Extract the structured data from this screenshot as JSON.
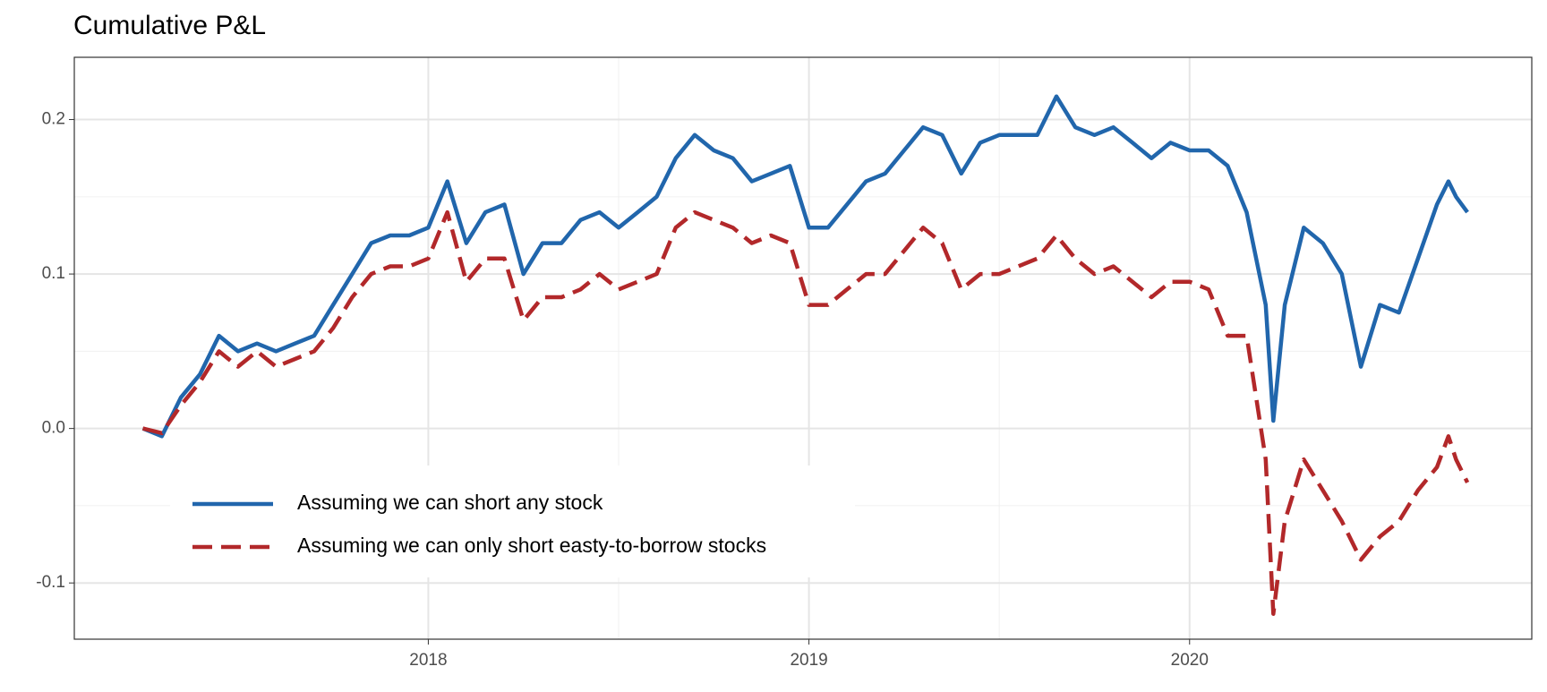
{
  "chart_data": {
    "type": "line",
    "title": "Cumulative P&L",
    "x": [
      2017.25,
      2017.3,
      2017.35,
      2017.4,
      2017.45,
      2017.5,
      2017.55,
      2017.6,
      2017.65,
      2017.7,
      2017.75,
      2017.8,
      2017.85,
      2017.9,
      2017.95,
      2018.0,
      2018.05,
      2018.1,
      2018.15,
      2018.2,
      2018.25,
      2018.3,
      2018.35,
      2018.4,
      2018.45,
      2018.5,
      2018.55,
      2018.6,
      2018.65,
      2018.7,
      2018.75,
      2018.8,
      2018.85,
      2018.9,
      2018.95,
      2019.0,
      2019.05,
      2019.1,
      2019.15,
      2019.2,
      2019.25,
      2019.3,
      2019.35,
      2019.4,
      2019.45,
      2019.5,
      2019.55,
      2019.6,
      2019.65,
      2019.7,
      2019.75,
      2019.8,
      2019.85,
      2019.9,
      2019.95,
      2020.0,
      2020.05,
      2020.1,
      2020.15,
      2020.2,
      2020.22,
      2020.25,
      2020.3,
      2020.35,
      2020.4,
      2020.45,
      2020.5,
      2020.55,
      2020.6,
      2020.65,
      2020.68,
      2020.7,
      2020.73
    ],
    "series": [
      {
        "name": "Assuming we can short any stock",
        "color": "#2166ac",
        "dash": false,
        "values": [
          0,
          -0.005,
          0.02,
          0.035,
          0.06,
          0.05,
          0.055,
          0.05,
          0.055,
          0.06,
          0.08,
          0.1,
          0.12,
          0.125,
          0.125,
          0.13,
          0.16,
          0.12,
          0.14,
          0.145,
          0.1,
          0.12,
          0.12,
          0.135,
          0.14,
          0.13,
          0.14,
          0.15,
          0.175,
          0.19,
          0.18,
          0.175,
          0.16,
          0.165,
          0.17,
          0.13,
          0.13,
          0.145,
          0.16,
          0.165,
          0.18,
          0.195,
          0.19,
          0.165,
          0.185,
          0.19,
          0.19,
          0.19,
          0.215,
          0.195,
          0.19,
          0.195,
          0.185,
          0.175,
          0.185,
          0.18,
          0.18,
          0.17,
          0.14,
          0.08,
          0.005,
          0.08,
          0.13,
          0.12,
          0.1,
          0.04,
          0.08,
          0.075,
          0.11,
          0.145,
          0.16,
          0.15,
          0.14
        ]
      },
      {
        "name": "Assuming we can only short easty-to-borrow stocks",
        "color": "#b2282a",
        "dash": true,
        "values": [
          0,
          -0.003,
          0.015,
          0.03,
          0.05,
          0.04,
          0.05,
          0.04,
          0.045,
          0.05,
          0.065,
          0.085,
          0.1,
          0.105,
          0.105,
          0.11,
          0.14,
          0.095,
          0.11,
          0.11,
          0.07,
          0.085,
          0.085,
          0.09,
          0.1,
          0.09,
          0.095,
          0.1,
          0.13,
          0.14,
          0.135,
          0.13,
          0.12,
          0.125,
          0.12,
          0.08,
          0.08,
          0.09,
          0.1,
          0.1,
          0.115,
          0.13,
          0.12,
          0.09,
          0.1,
          0.1,
          0.105,
          0.11,
          0.125,
          0.11,
          0.1,
          0.105,
          0.095,
          0.085,
          0.095,
          0.095,
          0.09,
          0.06,
          0.06,
          -0.02,
          -0.12,
          -0.06,
          -0.02,
          -0.04,
          -0.06,
          -0.085,
          -0.07,
          -0.06,
          -0.04,
          -0.025,
          -0.005,
          -0.02,
          -0.035
        ]
      }
    ],
    "xlim": [
      2017.07,
      2020.899
    ],
    "xticks": [
      2018,
      2019,
      2020
    ],
    "ylim": [
      -0.1364,
      0.2403
    ],
    "yticks": [
      -0.1,
      {
        "value": 0,
        "label": "0.0"
      },
      0.1,
      0.2
    ],
    "grid": true,
    "minor_grid": true,
    "legend": "bottom-left"
  }
}
